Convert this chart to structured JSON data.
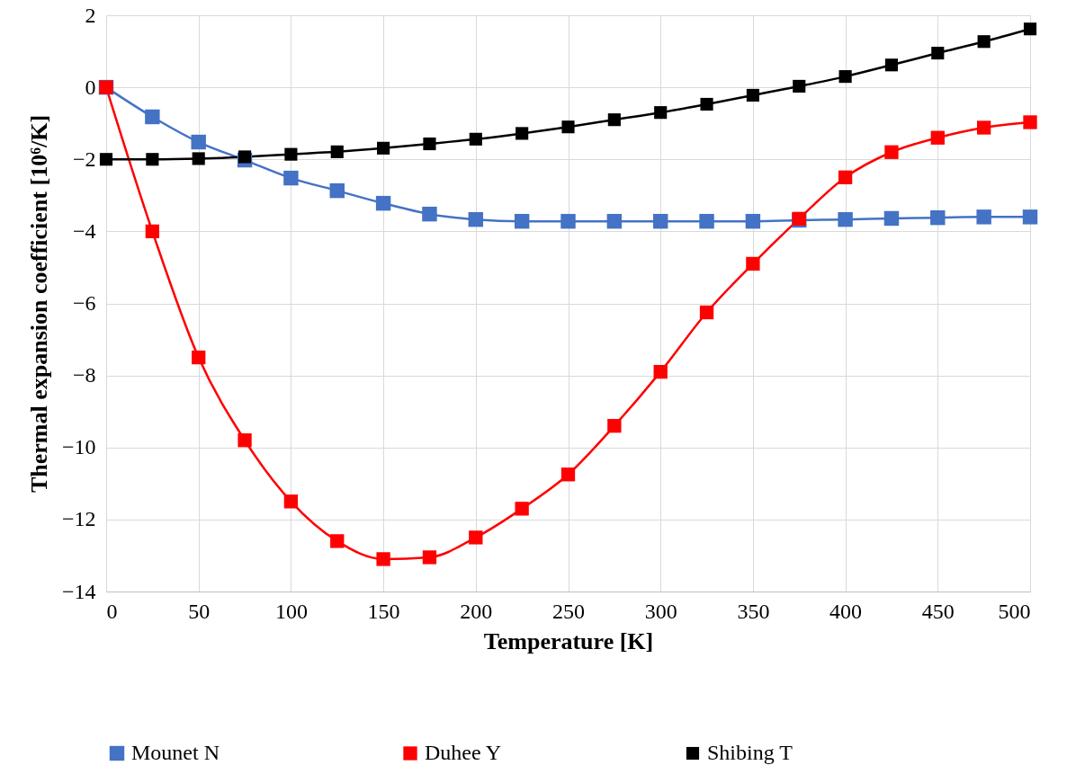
{
  "chart_data": {
    "type": "line",
    "xlabel": "Temperature [K]",
    "ylabel": "Thermal expansion coefficient [10⁶/K]",
    "x": [
      0,
      25,
      50,
      75,
      100,
      125,
      150,
      175,
      200,
      225,
      250,
      275,
      300,
      325,
      350,
      375,
      400,
      425,
      450,
      475,
      500
    ],
    "series": [
      {
        "name": "Mounet N",
        "color": "#4472c4",
        "values": [
          0,
          -0.82,
          -1.52,
          -2.02,
          -2.52,
          -2.87,
          -3.22,
          -3.52,
          -3.67,
          -3.72,
          -3.72,
          -3.72,
          -3.72,
          -3.72,
          -3.72,
          -3.69,
          -3.67,
          -3.64,
          -3.62,
          -3.6,
          -3.6
        ]
      },
      {
        "name": "Duhee Y",
        "color": "#ff0000",
        "values": [
          0,
          -4.0,
          -7.5,
          -9.8,
          -11.5,
          -12.6,
          -13.1,
          -13.05,
          -12.5,
          -11.7,
          -10.75,
          -9.4,
          -7.9,
          -6.25,
          -4.9,
          -3.65,
          -2.5,
          -1.8,
          -1.4,
          -1.12,
          -0.97
        ]
      },
      {
        "name": "Shibing T",
        "color": "#000000",
        "values": [
          -2.0,
          -2.0,
          -1.98,
          -1.93,
          -1.86,
          -1.79,
          -1.69,
          -1.57,
          -1.44,
          -1.28,
          -1.1,
          -0.9,
          -0.7,
          -0.47,
          -0.22,
          0.03,
          0.3,
          0.62,
          0.95,
          1.27,
          1.62
        ]
      }
    ],
    "xlim": [
      0,
      500
    ],
    "xticks": [
      0,
      50,
      100,
      150,
      200,
      250,
      300,
      350,
      400,
      450,
      500
    ],
    "ylim": [
      -14,
      2
    ],
    "yticks": [
      -14,
      -12,
      -10,
      -8,
      -6,
      -4,
      -2,
      0,
      2
    ],
    "grid": true,
    "legend": "bottom",
    "marker": "square",
    "line_style": "solid"
  }
}
